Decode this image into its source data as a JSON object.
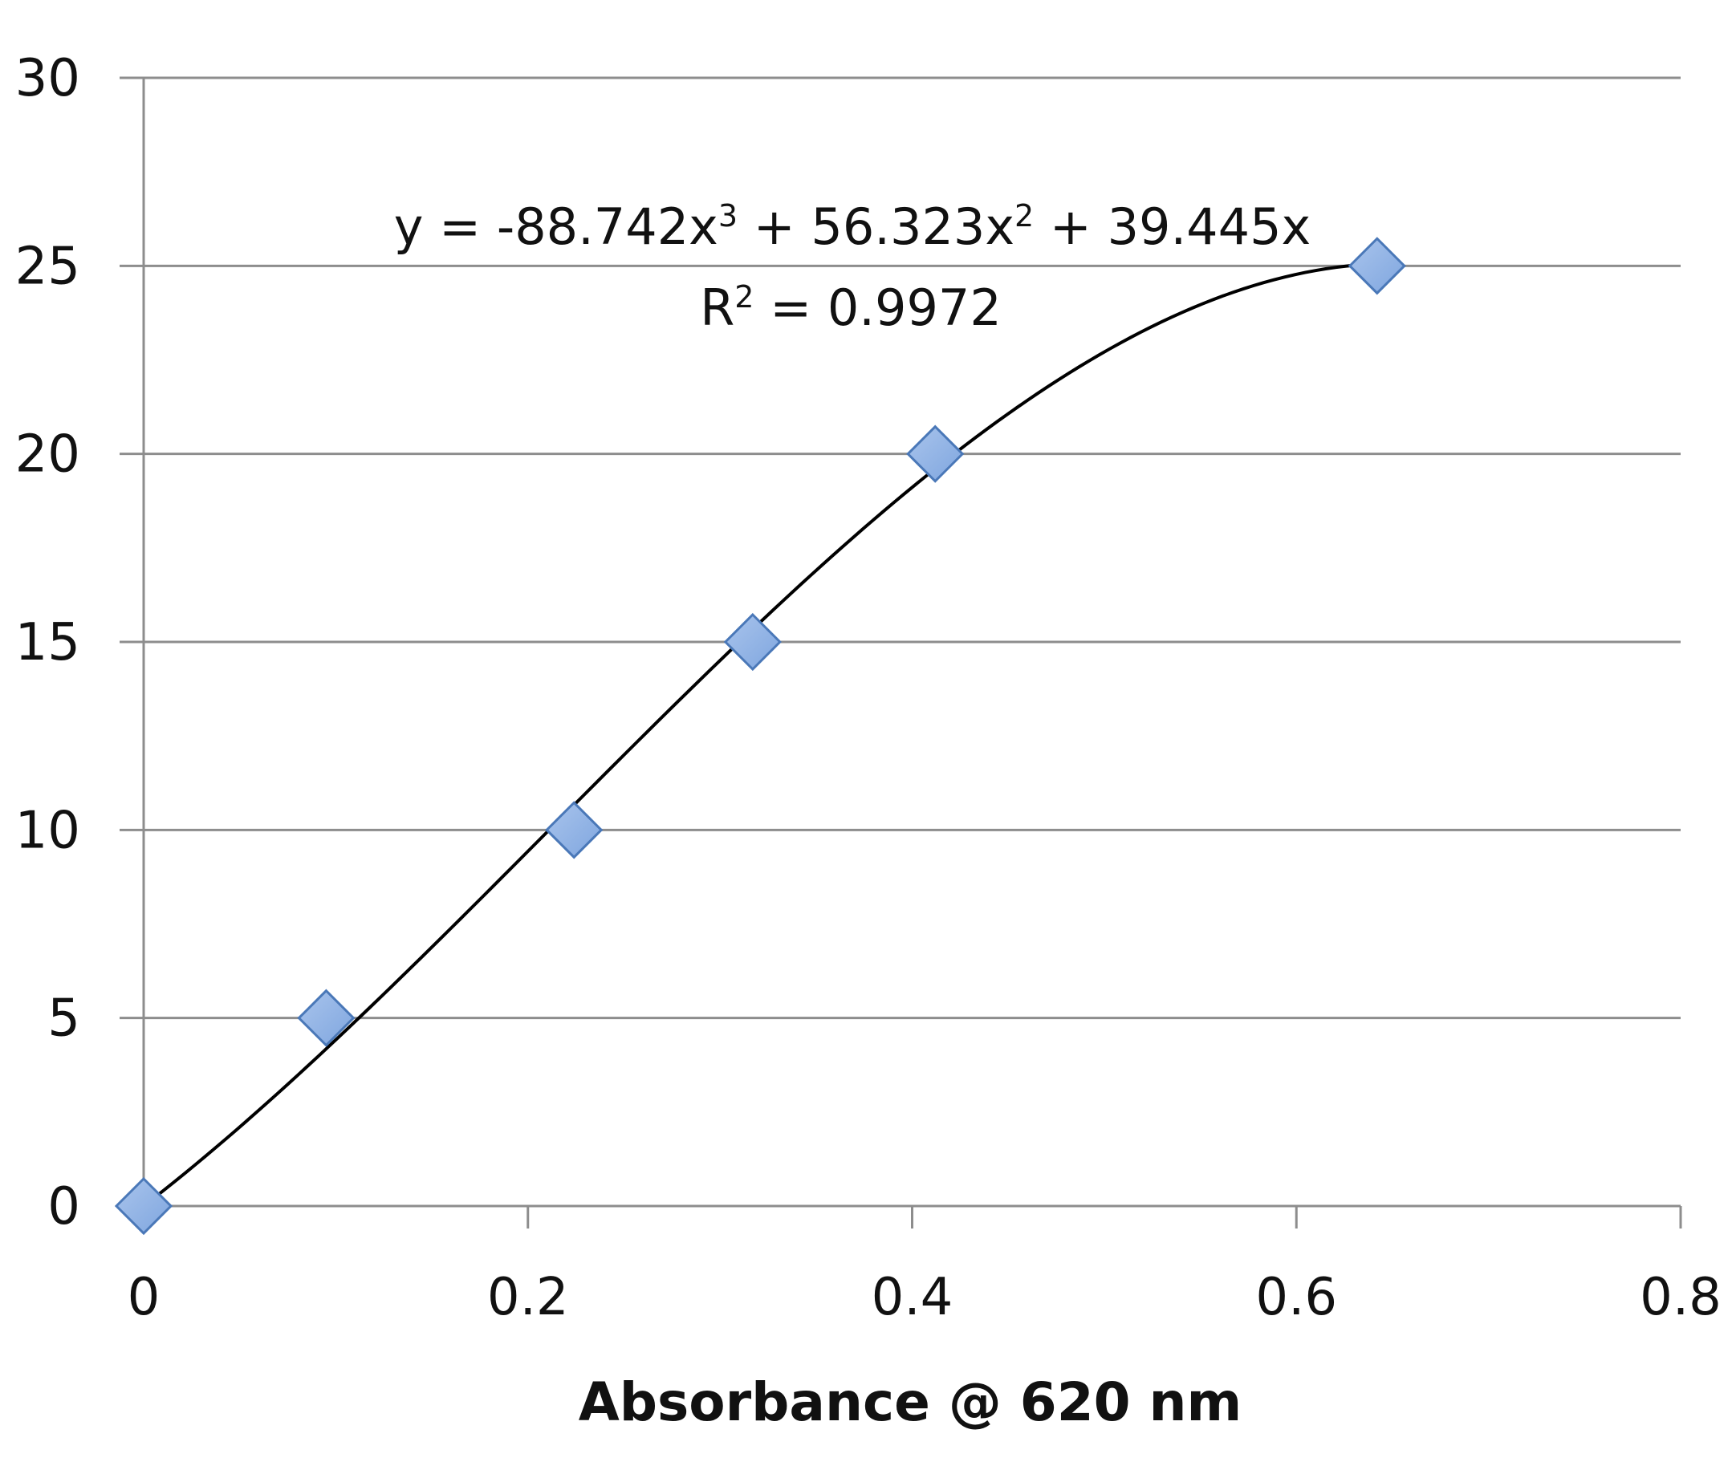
{
  "chart_data": {
    "type": "scatter",
    "title": "",
    "xlabel": "Absorbance @ 620 nm",
    "ylabel": "",
    "xlim": [
      0,
      0.8
    ],
    "ylim": [
      0,
      30
    ],
    "x_ticks": [
      0,
      0.2,
      0.4,
      0.6,
      0.8
    ],
    "x_tick_labels": [
      "0",
      "0.2",
      "0.4",
      "0.6",
      "0.8"
    ],
    "y_ticks": [
      0,
      5,
      10,
      15,
      20,
      25,
      30
    ],
    "y_tick_labels": [
      "0",
      "5",
      "10",
      "15",
      "20",
      "25",
      "30"
    ],
    "grid": {
      "horizontal": true,
      "vertical": false
    },
    "legend": "none",
    "series": [
      {
        "x": [
          0,
          0.095,
          0.224,
          0.317,
          0.412,
          0.642
        ],
        "y": [
          0,
          5,
          10,
          15,
          20,
          25
        ],
        "marker": "diamond",
        "color": "#7fa6df"
      }
    ],
    "trendline": {
      "type": "polynomial",
      "order": 3,
      "coefficients": [
        -88.742,
        56.323,
        39.445,
        0
      ],
      "x_range": [
        0,
        0.642
      ],
      "color": "#000000"
    },
    "annotations": {
      "equation": {
        "prefix": "y = -88.742x",
        "exp1": "3",
        "middle": " + 56.323x",
        "exp2": "2",
        "suffix": " + 39.445x"
      },
      "r_squared": {
        "prefix": "R",
        "exp": "2",
        "suffix": " = 0.9972"
      }
    }
  }
}
